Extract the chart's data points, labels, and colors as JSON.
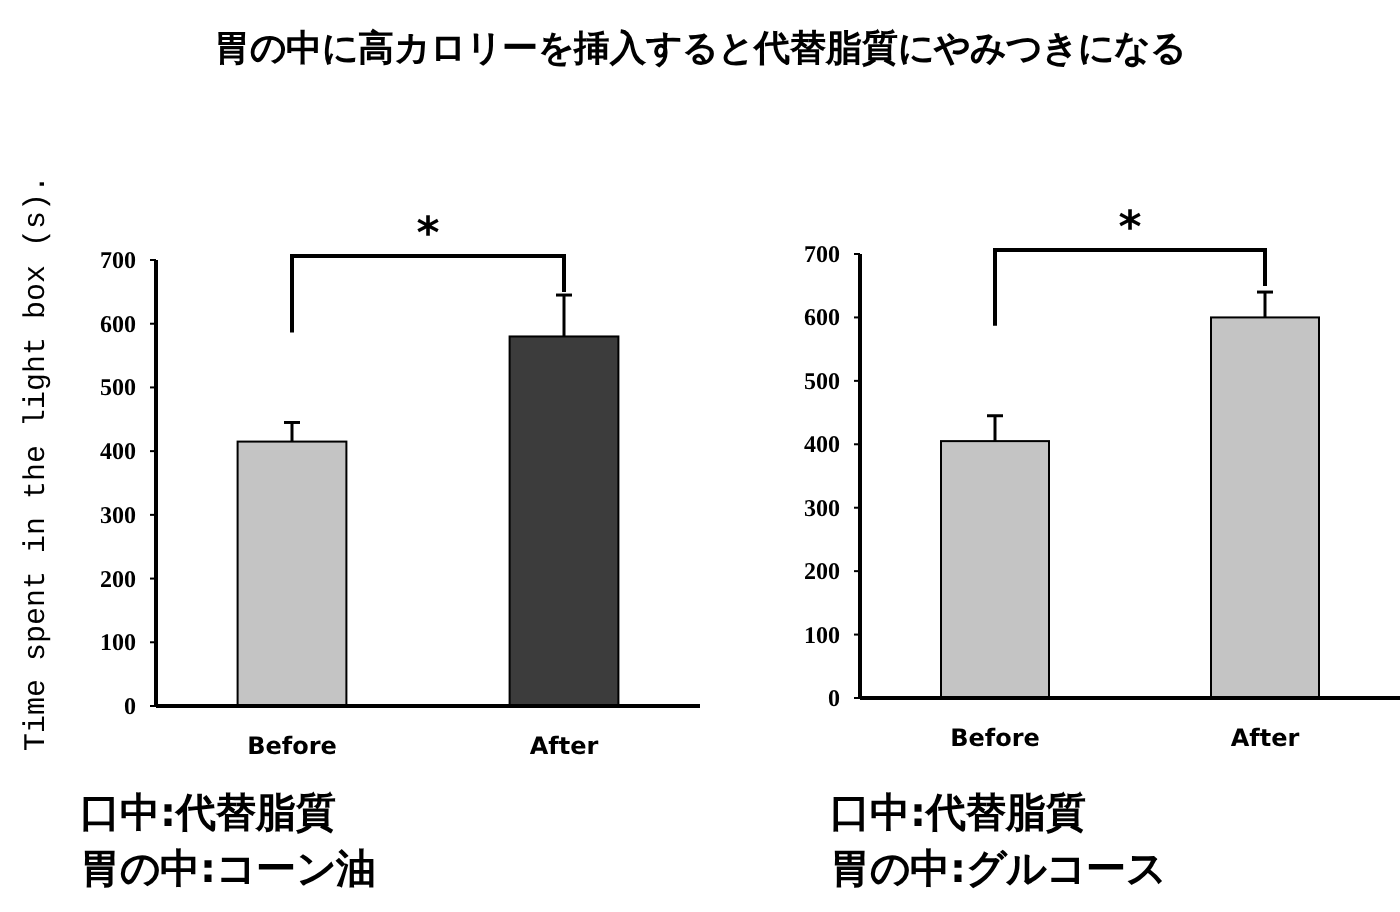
{
  "chart_data": [
    {
      "type": "bar",
      "title": "胃の中に高カロリーを挿入すると代替脂質にやみつきになる",
      "ylabel": "Time spent in the light box (s).",
      "categories": [
        "Before",
        "After"
      ],
      "values": [
        415,
        580
      ],
      "errors": [
        30,
        65
      ],
      "colors": [
        "#c4c4c4",
        "#3c3c3c"
      ],
      "ylim": [
        0,
        700
      ],
      "yticks": [
        0,
        100,
        200,
        300,
        400,
        500,
        600,
        700
      ],
      "annotations": [
        "*",
        "口中:代替脂質",
        "胃の中:コーン油"
      ]
    },
    {
      "type": "bar",
      "categories": [
        "Before",
        "After"
      ],
      "values": [
        405,
        600
      ],
      "errors": [
        40,
        40
      ],
      "colors": [
        "#c4c4c4",
        "#c4c4c4"
      ],
      "ylim": [
        0,
        700
      ],
      "yticks": [
        0,
        100,
        200,
        300,
        400,
        500,
        600,
        700
      ],
      "annotations": [
        "*",
        "口中:代替脂質",
        "胃の中:グルコース"
      ]
    }
  ]
}
